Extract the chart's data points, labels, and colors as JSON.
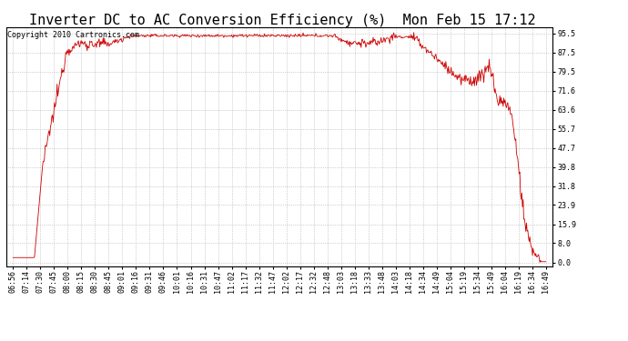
{
  "title": "Inverter DC to AC Conversion Efficiency (%)  Mon Feb 15 17:12",
  "copyright": "Copyright 2010 Cartronics.com",
  "line_color": "#cc0000",
  "background_color": "#ffffff",
  "plot_bg_color": "#ffffff",
  "yticks": [
    0.0,
    8.0,
    15.9,
    23.9,
    31.8,
    39.8,
    47.7,
    55.7,
    63.6,
    71.6,
    79.5,
    87.5,
    95.5
  ],
  "ylim": [
    -1.5,
    98.0
  ],
  "xtick_labels": [
    "06:56",
    "07:14",
    "07:30",
    "07:45",
    "08:00",
    "08:15",
    "08:30",
    "08:45",
    "09:01",
    "09:16",
    "09:31",
    "09:46",
    "10:01",
    "10:16",
    "10:31",
    "10:47",
    "11:02",
    "11:17",
    "11:32",
    "11:47",
    "12:02",
    "12:17",
    "12:32",
    "12:48",
    "13:03",
    "13:18",
    "13:33",
    "13:48",
    "14:03",
    "14:18",
    "14:34",
    "14:49",
    "15:04",
    "15:19",
    "15:34",
    "15:49",
    "16:04",
    "16:19",
    "16:34",
    "16:49"
  ],
  "title_fontsize": 11,
  "copyright_fontsize": 6,
  "tick_fontsize": 6,
  "grid_color": "#aaaaaa",
  "figsize": [
    6.9,
    3.75
  ],
  "dpi": 100
}
